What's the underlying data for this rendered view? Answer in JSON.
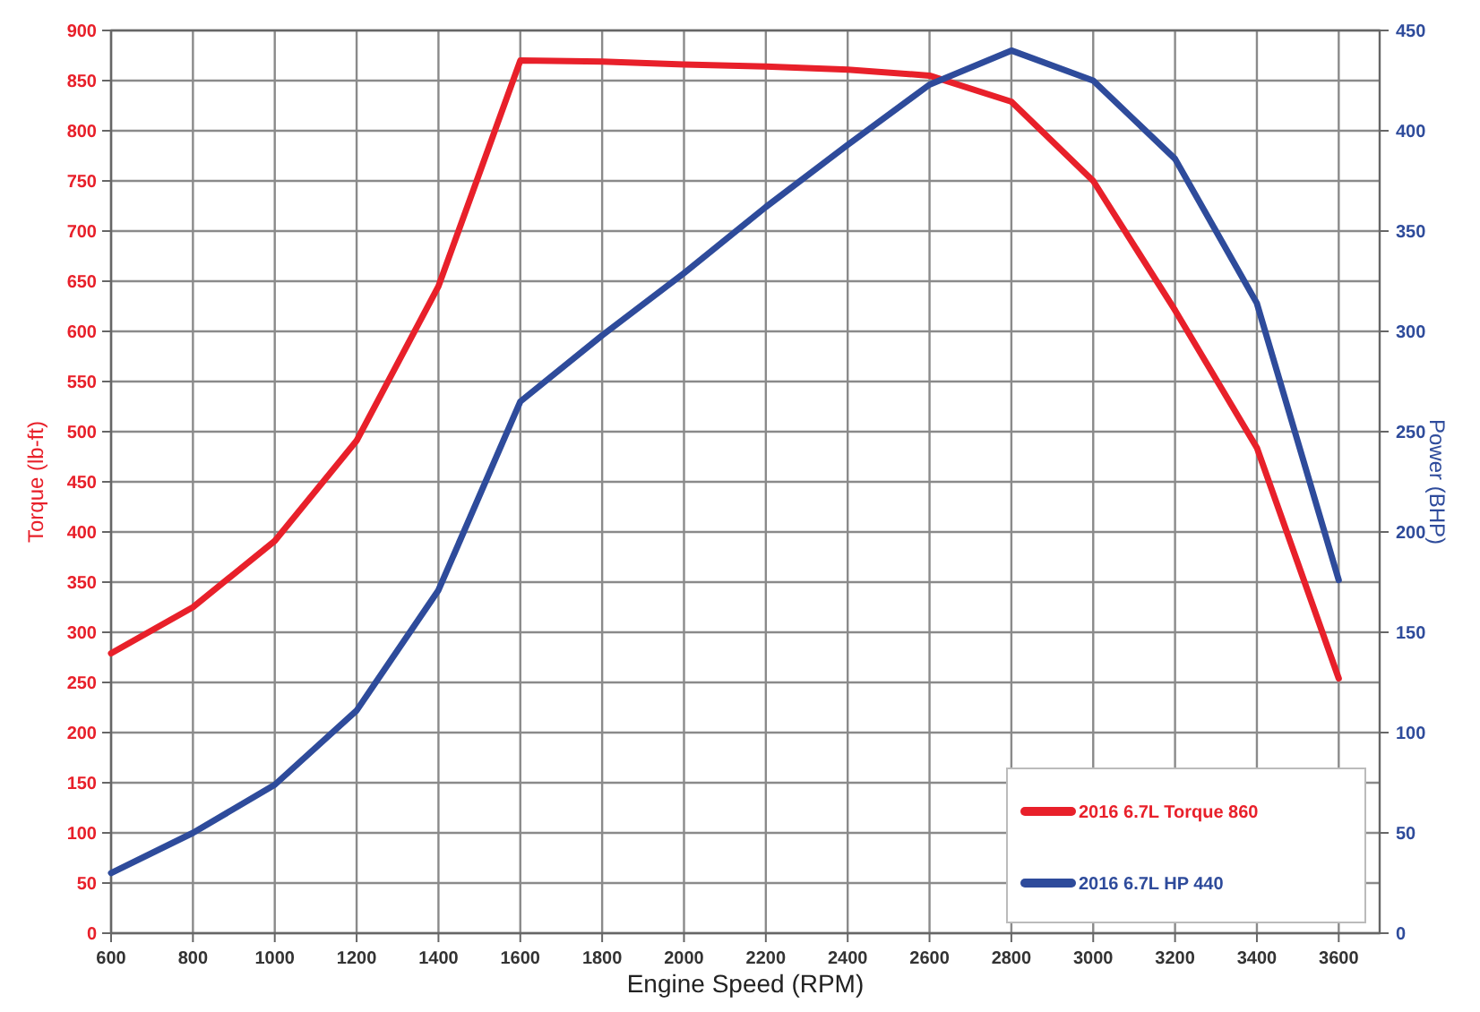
{
  "chart_data": {
    "type": "line",
    "xlabel": "Engine Speed (RPM)",
    "ylabel": "Torque (lb-ft)",
    "y2label": "Power (BHP)",
    "x": [
      600,
      800,
      1000,
      1200,
      1400,
      1600,
      1800,
      2000,
      2200,
      2400,
      2600,
      2800,
      3000,
      3200,
      3400,
      3600
    ],
    "series": [
      {
        "name": "2016 6.7L Torque 860",
        "color": "#e8202a",
        "values": [
          279,
          325,
          391,
          491,
          645,
          870,
          869,
          866,
          864,
          861,
          855,
          829,
          750,
          621,
          484,
          254
        ]
      },
      {
        "name": "2016 6.7L HP 440",
        "color": "#2e4b9b",
        "axis": "y2",
        "values": [
          30,
          50,
          74,
          111,
          171,
          265,
          298,
          329,
          362,
          393,
          423,
          440,
          425,
          386,
          314,
          176
        ]
      }
    ],
    "xlim": [
      600,
      3700
    ],
    "xticks": [
      600,
      800,
      1000,
      1200,
      1400,
      1600,
      1800,
      2000,
      2200,
      2400,
      2600,
      2800,
      3000,
      3200,
      3400,
      3600
    ],
    "ylim": [
      0,
      900
    ],
    "yticks": [
      0,
      50,
      100,
      150,
      200,
      250,
      300,
      350,
      400,
      450,
      500,
      550,
      600,
      650,
      700,
      750,
      800,
      850,
      900
    ],
    "y2lim": [
      0,
      450
    ],
    "y2ticks": [
      0,
      50,
      100,
      150,
      200,
      250,
      300,
      350,
      400,
      450
    ],
    "grid": true,
    "legend": "bottom right",
    "marker": "none",
    "line_style": "solid"
  }
}
